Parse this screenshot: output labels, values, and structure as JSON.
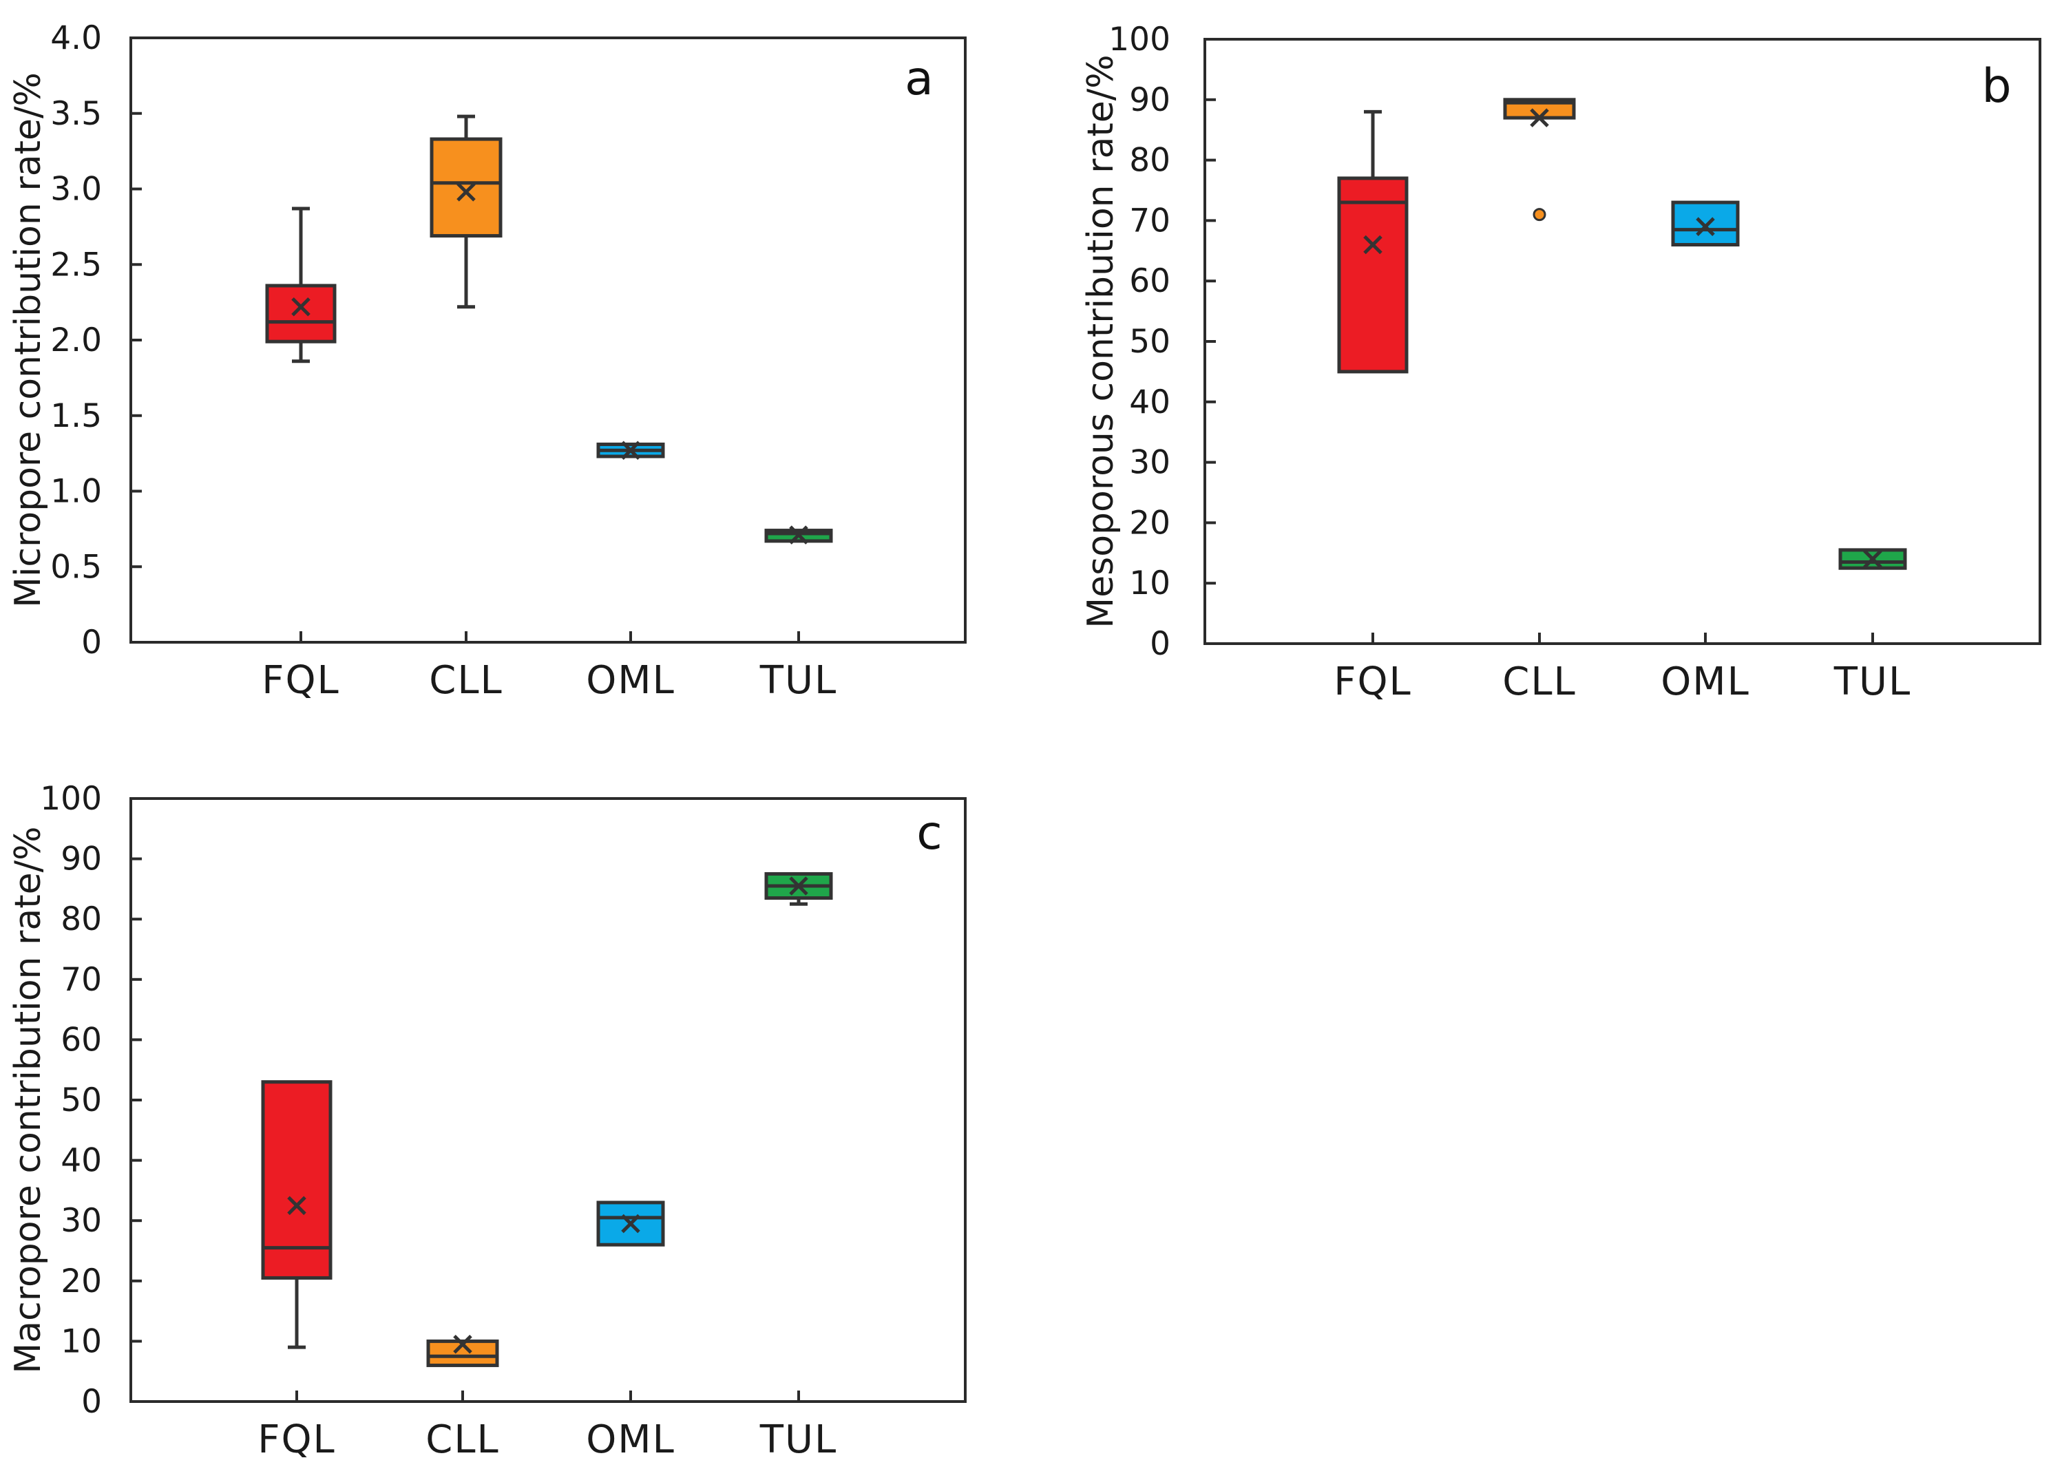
{
  "colors": {
    "FQL": "#ec1c24",
    "CLL": "#f7901e",
    "OML": "#0aa9e8",
    "TUL": "#1fa64a",
    "axis": "#2b2b2b",
    "box_edge": "#333333"
  },
  "chart_data": [
    {
      "type": "box",
      "panel_label": "a",
      "ylabel": "Micropore contribution rate/%",
      "ylim": [
        0,
        4.0
      ],
      "yticks": [
        0,
        0.5,
        1.0,
        1.5,
        2.0,
        2.5,
        3.0,
        3.5,
        4.0
      ],
      "ytick_labels": [
        "0",
        "0.5",
        "1.0",
        "1.5",
        "2.0",
        "2.5",
        "3.0",
        "3.5",
        "4.0"
      ],
      "categories": [
        "FQL",
        "CLL",
        "OML",
        "TUL"
      ],
      "series": [
        {
          "name": "FQL",
          "min": 1.86,
          "q1": 1.99,
          "median": 2.12,
          "q3": 2.36,
          "max": 2.87,
          "mean": 2.22,
          "outliers": []
        },
        {
          "name": "CLL",
          "min": 2.22,
          "q1": 2.69,
          "median": 3.04,
          "q3": 3.33,
          "max": 3.48,
          "mean": 2.98,
          "outliers": []
        },
        {
          "name": "OML",
          "min": 1.23,
          "q1": 1.23,
          "median": 1.27,
          "q3": 1.31,
          "max": 1.31,
          "mean": 1.27,
          "outliers": []
        },
        {
          "name": "TUL",
          "min": 0.67,
          "q1": 0.67,
          "median": 0.72,
          "q3": 0.74,
          "max": 0.74,
          "mean": 0.71,
          "outliers": []
        }
      ]
    },
    {
      "type": "box",
      "panel_label": "b",
      "ylabel": "Mesoporous contribution rate/%",
      "ylim": [
        0,
        100
      ],
      "yticks": [
        0,
        10,
        20,
        30,
        40,
        50,
        60,
        70,
        80,
        90,
        100
      ],
      "ytick_labels": [
        "0",
        "10",
        "20",
        "30",
        "40",
        "50",
        "60",
        "70",
        "80",
        "90",
        "100"
      ],
      "categories": [
        "FQL",
        "CLL",
        "OML",
        "TUL"
      ],
      "series": [
        {
          "name": "FQL",
          "min": 45,
          "q1": 45,
          "median": 73,
          "q3": 77,
          "max": 88,
          "mean": 66,
          "outliers": []
        },
        {
          "name": "CLL",
          "min": 87,
          "q1": 87,
          "median": 89.5,
          "q3": 90,
          "max": 90,
          "mean": 87,
          "outliers": [
            71
          ]
        },
        {
          "name": "OML",
          "min": 66,
          "q1": 66,
          "median": 68.5,
          "q3": 73,
          "max": 73,
          "mean": 69,
          "outliers": []
        },
        {
          "name": "TUL",
          "min": 12.5,
          "q1": 12.5,
          "median": 13.5,
          "q3": 15.5,
          "max": 15.5,
          "mean": 14,
          "outliers": []
        }
      ]
    },
    {
      "type": "box",
      "panel_label": "c",
      "ylabel": "Macropore contribution rate/%",
      "ylim": [
        0,
        100
      ],
      "yticks": [
        0,
        10,
        20,
        30,
        40,
        50,
        60,
        70,
        80,
        90,
        100
      ],
      "ytick_labels": [
        "0",
        "10",
        "20",
        "30",
        "40",
        "50",
        "60",
        "70",
        "80",
        "90",
        "100"
      ],
      "categories": [
        "FQL",
        "CLL",
        "OML",
        "TUL"
      ],
      "series": [
        {
          "name": "FQL",
          "min": 9,
          "q1": 20.5,
          "median": 25.5,
          "q3": 53,
          "max": 53,
          "mean": 32.5,
          "outliers": []
        },
        {
          "name": "CLL",
          "min": 6,
          "q1": 6,
          "median": 7.5,
          "q3": 10,
          "max": 10,
          "mean": 9.5,
          "outliers": []
        },
        {
          "name": "OML",
          "min": 26,
          "q1": 26,
          "median": 30.5,
          "q3": 33,
          "max": 33,
          "mean": 29.5,
          "outliers": []
        },
        {
          "name": "TUL",
          "min": 82.5,
          "q1": 83.5,
          "median": 85.5,
          "q3": 87.5,
          "max": 87.5,
          "mean": 85.5,
          "outliers": []
        }
      ]
    }
  ]
}
